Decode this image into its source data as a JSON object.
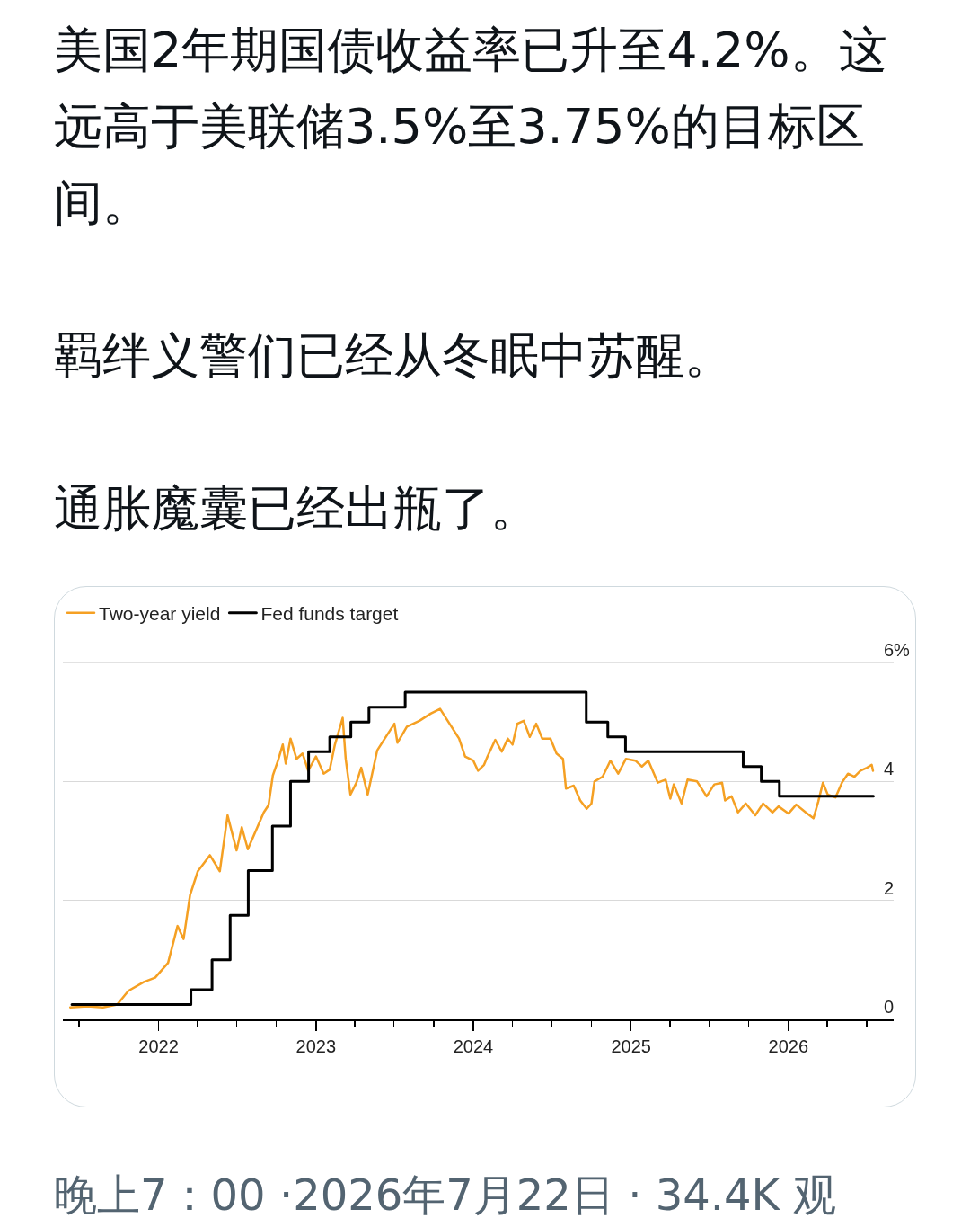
{
  "chart_data": {
    "type": "line",
    "title": "美国2年期国债收益率已升至4.2%。这远高于美联储3.5%至3.75%的目标区间。",
    "annotations": [
      "羁绊义警们已经从冬眠中苏醒。",
      "通胀魔囊已经出瓶了。",
      "晚上7：00 ·2026年7月22日 · 34.4K 观"
    ],
    "series": [
      {
        "name": "Two-year yield",
        "color": "#f5a023",
        "x": [
          "2021-06-10",
          "2021-07-20",
          "2021-08-25",
          "2021-09-27",
          "2021-10-23",
          "2021-11-28",
          "2021-12-24",
          "2022-01-23",
          "2022-02-14",
          "2022-02-28",
          "2022-03-15",
          "2022-04-02",
          "2022-04-30",
          "2022-05-23",
          "2022-06-10",
          "2022-07-01",
          "2022-07-13",
          "2022-07-27",
          "2022-09-02",
          "2022-09-13",
          "2022-09-23",
          "2022-10-05",
          "2022-10-16",
          "2022-10-23",
          "2022-11-03",
          "2022-11-17",
          "2022-12-01",
          "2022-12-14",
          "2023-01-01",
          "2023-01-19",
          "2023-02-02",
          "2023-02-14",
          "2023-03-04",
          "2023-03-11",
          "2023-03-22",
          "2023-04-05",
          "2023-04-16",
          "2023-05-01",
          "2023-05-23",
          "2023-06-14",
          "2023-07-02",
          "2023-07-09",
          "2023-07-31",
          "2023-08-29",
          "2023-09-24",
          "2023-10-16",
          "2023-11-07",
          "2023-11-29",
          "2023-12-13",
          "2024-01-01",
          "2024-01-12",
          "2024-01-26",
          "2024-02-03",
          "2024-02-21",
          "2024-03-07",
          "2024-03-21",
          "2024-04-01",
          "2024-04-12",
          "2024-04-27",
          "2024-05-11",
          "2024-05-26",
          "2024-06-09",
          "2024-06-28",
          "2024-07-12",
          "2024-07-27",
          "2024-08-03",
          "2024-08-21",
          "2024-09-05",
          "2024-09-20",
          "2024-10-01",
          "2024-10-08",
          "2024-10-27",
          "2024-11-14",
          "2024-12-02",
          "2024-12-20",
          "2025-01-11",
          "2025-01-26",
          "2025-02-10",
          "2025-03-04",
          "2025-03-22",
          "2025-04-02",
          "2025-04-10",
          "2025-04-28",
          "2025-05-12",
          "2025-06-03",
          "2025-06-25",
          "2025-07-13",
          "2025-07-31",
          "2025-08-07",
          "2025-08-22",
          "2025-09-06",
          "2025-09-24",
          "2025-10-16",
          "2025-11-03",
          "2025-11-25",
          "2025-12-09",
          "2026-01-01",
          "2026-01-19",
          "2026-02-10",
          "2026-02-28",
          "2026-03-11",
          "2026-03-22",
          "2026-04-02",
          "2026-04-20",
          "2026-05-05",
          "2026-05-19",
          "2026-06-03",
          "2026-06-17",
          "2026-07-02",
          "2026-07-13",
          "2026-07-16"
        ],
        "values": [
          0.2,
          0.22,
          0.2,
          0.25,
          0.48,
          0.63,
          0.7,
          0.95,
          1.57,
          1.35,
          2.09,
          2.49,
          2.76,
          2.49,
          3.43,
          2.84,
          3.23,
          2.86,
          3.48,
          3.6,
          4.1,
          4.35,
          4.62,
          4.3,
          4.72,
          4.38,
          4.47,
          4.18,
          4.42,
          4.13,
          4.2,
          4.62,
          5.07,
          4.38,
          3.78,
          3.98,
          4.23,
          3.78,
          4.52,
          4.77,
          4.97,
          4.65,
          4.92,
          5.02,
          5.14,
          5.22,
          4.97,
          4.72,
          4.42,
          4.35,
          4.18,
          4.28,
          4.42,
          4.7,
          4.5,
          4.72,
          4.62,
          4.97,
          5.02,
          4.75,
          4.97,
          4.72,
          4.72,
          4.47,
          4.38,
          3.88,
          3.93,
          3.68,
          3.54,
          3.63,
          4.0,
          4.08,
          4.35,
          4.13,
          4.38,
          4.35,
          4.25,
          4.35,
          3.98,
          4.03,
          3.71,
          3.95,
          3.63,
          4.03,
          4.0,
          3.75,
          3.95,
          3.98,
          3.68,
          3.75,
          3.48,
          3.63,
          3.43,
          3.63,
          3.48,
          3.58,
          3.46,
          3.61,
          3.48,
          3.38,
          3.66,
          3.98,
          3.78,
          3.73,
          3.98,
          4.13,
          4.08,
          4.18,
          4.23,
          4.28,
          4.18
        ]
      },
      {
        "name": "Fed funds target",
        "type": "step",
        "color": "#000000",
        "x": [
          "2021-06-14",
          "2022-03-17",
          "2022-05-05",
          "2022-06-16",
          "2022-07-28",
          "2022-09-22",
          "2022-11-03",
          "2022-12-15",
          "2023-02-02",
          "2023-03-23",
          "2023-05-04",
          "2023-07-27",
          "2024-09-19",
          "2024-11-08",
          "2024-12-19",
          "2025-09-18",
          "2025-10-30",
          "2025-12-11",
          "2026-07-17"
        ],
        "values": [
          0.25,
          0.5,
          1.0,
          1.75,
          2.5,
          3.25,
          4.0,
          4.5,
          4.75,
          5.0,
          5.25,
          5.5,
          5.0,
          4.75,
          4.5,
          4.25,
          4.0,
          3.75,
          3.75
        ]
      }
    ],
    "xlim": [
      "2021-05-24",
      "2026-09-02"
    ],
    "xticks": [
      {
        "value": "2021-07-01",
        "label": null
      },
      {
        "value": "2021-10-01",
        "label": null
      },
      {
        "value": "2022-01-01",
        "label": "2022"
      },
      {
        "value": "2022-04-01",
        "label": null
      },
      {
        "value": "2022-07-01",
        "label": null
      },
      {
        "value": "2022-10-01",
        "label": null
      },
      {
        "value": "2023-01-01",
        "label": "2023"
      },
      {
        "value": "2023-04-01",
        "label": null
      },
      {
        "value": "2023-07-01",
        "label": null
      },
      {
        "value": "2023-10-01",
        "label": null
      },
      {
        "value": "2024-01-01",
        "label": "2024"
      },
      {
        "value": "2024-04-01",
        "label": null
      },
      {
        "value": "2024-07-01",
        "label": null
      },
      {
        "value": "2024-10-01",
        "label": null
      },
      {
        "value": "2025-01-01",
        "label": "2025"
      },
      {
        "value": "2025-04-01",
        "label": null
      },
      {
        "value": "2025-07-01",
        "label": null
      },
      {
        "value": "2025-10-01",
        "label": null
      },
      {
        "value": "2026-01-01",
        "label": "2026"
      },
      {
        "value": "2026-04-01",
        "label": null
      },
      {
        "value": "2026-07-01",
        "label": null
      }
    ],
    "ylim": [
      0,
      6
    ],
    "yticks": [
      0,
      2,
      4,
      {
        "value": 6,
        "label": "6%"
      }
    ],
    "grid": "y",
    "legend": "top left",
    "marker": "none",
    "line_style": "solid"
  }
}
